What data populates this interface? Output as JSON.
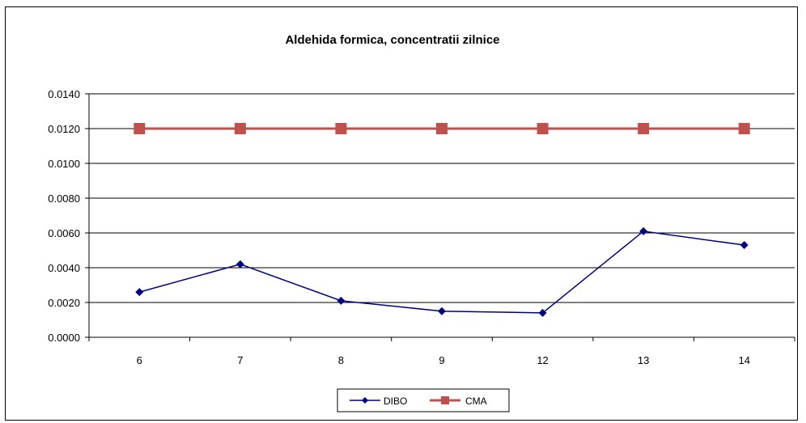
{
  "chart_data": {
    "type": "line",
    "title": "Aldehida formica, concentratii zilnice",
    "xlabel": "",
    "ylabel": "",
    "categories": [
      "6",
      "7",
      "8",
      "9",
      "12",
      "13",
      "14"
    ],
    "ylim": [
      0,
      0.014
    ],
    "yticks": [
      "0.0000",
      "0.0020",
      "0.0040",
      "0.0060",
      "0.0080",
      "0.0100",
      "0.0120",
      "0.0140"
    ],
    "grid": true,
    "legend_position": "bottom",
    "series": [
      {
        "name": "DIBO",
        "values": [
          0.0026,
          0.0042,
          0.0021,
          0.0015,
          0.0014,
          0.0061,
          0.0053
        ],
        "color": "#000080",
        "marker": "diamond"
      },
      {
        "name": "CMA",
        "values": [
          0.012,
          0.012,
          0.012,
          0.012,
          0.012,
          0.012,
          0.012
        ],
        "color": "#C0504D",
        "marker": "square"
      }
    ]
  }
}
